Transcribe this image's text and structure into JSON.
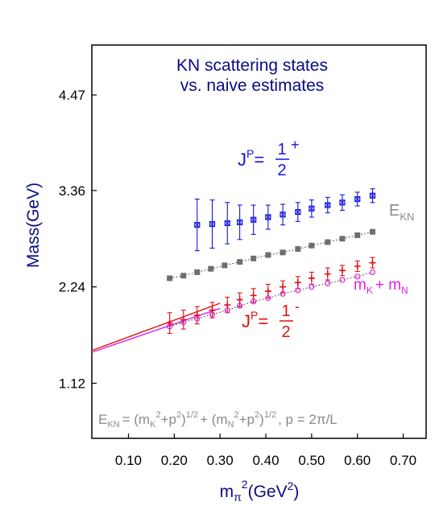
{
  "chart_data": {
    "type": "scatter",
    "title_lines": [
      "KN scattering states",
      "vs. naive estimates"
    ],
    "xlabel": {
      "base": "m",
      "sub": "π",
      "sup": "2",
      "rest": "(GeV",
      "rest_sup": "2",
      "close": ")"
    },
    "ylabel": "Mass(GeV)",
    "xlim": [
      0.02,
      0.75
    ],
    "ylim": [
      0.48,
      5.05
    ],
    "x_ticks": [
      0.1,
      0.2,
      0.3,
      0.4,
      0.5,
      0.6,
      0.7
    ],
    "x_tick_labels": [
      "0.10",
      "0.20",
      "0.30",
      "0.40",
      "0.50",
      "0.60",
      "0.70"
    ],
    "y_ticks": [
      1.12,
      2.24,
      3.36,
      4.47
    ],
    "y_tick_labels": [
      "1.12",
      "2.24",
      "3.36",
      "4.47"
    ],
    "grid": false,
    "series": [
      {
        "name": "J^P = 1/2^+",
        "color": "#1515e0",
        "marker": "square-x",
        "x": [
          0.25,
          0.283,
          0.316,
          0.343,
          0.373,
          0.405,
          0.437,
          0.47,
          0.5,
          0.535,
          0.567,
          0.6,
          0.633
        ],
        "y": [
          2.96,
          2.97,
          2.98,
          2.99,
          3.02,
          3.05,
          3.08,
          3.11,
          3.15,
          3.19,
          3.22,
          3.26,
          3.3
        ],
        "err": [
          0.3,
          0.28,
          0.24,
          0.2,
          0.17,
          0.14,
          0.12,
          0.11,
          0.1,
          0.09,
          0.09,
          0.08,
          0.08
        ]
      },
      {
        "name": "E_KN",
        "color": "#6e6e6e",
        "marker": "square",
        "x": [
          0.19,
          0.22,
          0.25,
          0.28,
          0.31,
          0.343,
          0.373,
          0.405,
          0.437,
          0.47,
          0.5,
          0.535,
          0.567,
          0.6,
          0.633
        ],
        "y": [
          2.34,
          2.37,
          2.41,
          2.45,
          2.49,
          2.53,
          2.57,
          2.61,
          2.64,
          2.68,
          2.72,
          2.76,
          2.8,
          2.84,
          2.88
        ]
      },
      {
        "name": "J^P = 1/2^-",
        "color": "#e01010",
        "marker": "plus",
        "x": [
          0.19,
          0.22,
          0.25,
          0.283,
          0.316,
          0.343,
          0.373,
          0.405,
          0.437,
          0.47,
          0.5,
          0.535,
          0.567,
          0.6,
          0.633
        ],
        "y": [
          1.82,
          1.86,
          1.91,
          1.97,
          2.03,
          2.09,
          2.14,
          2.19,
          2.24,
          2.29,
          2.34,
          2.39,
          2.43,
          2.48,
          2.52
        ],
        "err": [
          0.12,
          0.11,
          0.1,
          0.09,
          0.09,
          0.08,
          0.08,
          0.08,
          0.07,
          0.07,
          0.07,
          0.07,
          0.06,
          0.06,
          0.06
        ]
      },
      {
        "name": "m_K + m_N",
        "color": "#e020e0",
        "marker": "circle",
        "x": [
          0.19,
          0.22,
          0.25,
          0.283,
          0.316,
          0.343,
          0.373,
          0.405,
          0.437,
          0.47,
          0.5,
          0.535,
          0.567,
          0.6,
          0.633
        ],
        "y": [
          1.78,
          1.83,
          1.87,
          1.92,
          1.97,
          2.02,
          2.07,
          2.11,
          2.16,
          2.2,
          2.24,
          2.28,
          2.32,
          2.36,
          2.41
        ]
      }
    ],
    "fit_lines": [
      {
        "color": "#e01010",
        "x": [
          0.02,
          0.3
        ],
        "y": [
          1.5,
          2.05
        ]
      },
      {
        "color": "#e020e0",
        "x": [
          0.02,
          0.3
        ],
        "y": [
          1.48,
          1.99
        ]
      }
    ],
    "labels": {
      "jp_symbol": "J",
      "jp_sup": "P",
      "equals": "=",
      "half_num": "1",
      "half_den": "2",
      "plus_sup": "+",
      "minus_sup": "-",
      "ekn_base": "E",
      "ekn_sub": "KN",
      "sum_m1": "m",
      "sum_k": "K",
      "sum_plus": "+ m",
      "sum_n": "N"
    },
    "formula": {
      "e": "E",
      "kn": "KN",
      "p1": "= (m",
      "k": "K",
      "two1": "2",
      "p2": "+p",
      "two2": "2",
      "p3": ")",
      "half1": "1/2",
      "p4": "+ (m",
      "n": "N",
      "two3": "2",
      "p5": "+p",
      "two4": "2",
      "p6": ")",
      "half2": "1/2",
      "p7": ", p = 2π/L"
    }
  }
}
